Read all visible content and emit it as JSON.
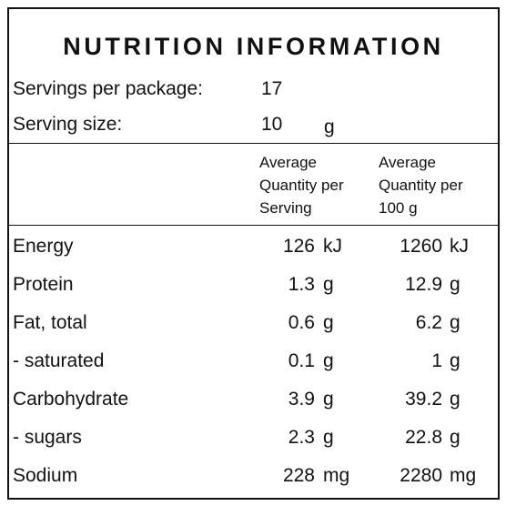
{
  "header": {
    "title": "NUTRITION INFORMATION"
  },
  "servings": {
    "label": "Servings per package:",
    "value": 17
  },
  "serving_size": {
    "label": "Serving size:",
    "value": 10,
    "unit": "g"
  },
  "table": {
    "columns": [
      [
        "Average",
        "Quantity per",
        "Serving"
      ],
      [
        "Average",
        "Quantity per",
        "100 g"
      ]
    ],
    "rows": [
      [
        "Energy",
        126,
        "kJ",
        1260,
        "kJ"
      ],
      [
        "Protein",
        1.3,
        "g",
        12.9,
        "g"
      ],
      [
        "Fat, total",
        0.6,
        "g",
        6.2,
        "g"
      ],
      [
        "- saturated",
        0.1,
        "g",
        1,
        "g"
      ],
      [
        "Carbohydrate",
        3.9,
        "g",
        39.2,
        "g"
      ],
      [
        "- sugars",
        2.3,
        "g",
        22.8,
        "g"
      ],
      [
        "Sodium",
        228,
        "mg",
        2280,
        "mg"
      ]
    ]
  }
}
